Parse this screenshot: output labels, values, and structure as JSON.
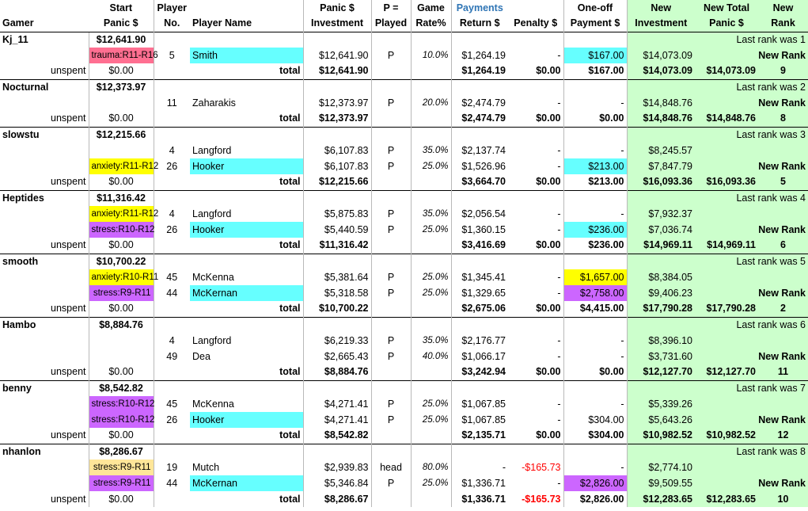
{
  "colors": {
    "green_panel": "#ccffcc",
    "cyan": "#66ffff",
    "yellow": "#ffff00",
    "purple": "#cc66ff",
    "pink": "#ff6f91",
    "tan": "#ffe699",
    "payments_blue": "#2f75b5",
    "negative_red": "#ff0000"
  },
  "headers": {
    "row1": {
      "start": "Start",
      "player": "Player",
      "panic": "Panic $",
      "p_eq": "P =",
      "game": "Game",
      "payments": "Payments",
      "oneoff": "One-off",
      "new_inv": "New",
      "new_total": "New Total",
      "new_rank": "New"
    },
    "row2": {
      "gamer": "Gamer",
      "start": "Panic $",
      "player": "No.",
      "player_name": "Player Name",
      "panic": "Investment",
      "p_eq": "Played",
      "game": "Rate%",
      "payments": "Return $",
      "penalty": "Penalty $",
      "oneoff": "Payment $",
      "new_inv": "Investment",
      "new_total": "Panic $",
      "new_rank": "Rank"
    }
  },
  "labels": {
    "unspent": "unspent",
    "total": "total",
    "last_rank_prefix": "Last rank was",
    "new_rank": "New Rank"
  },
  "gamers": [
    {
      "name": "Kj_11",
      "start": "$12,641.90",
      "last_rank": "Last rank was 1",
      "rows": [
        {
          "tag": "trauma:R11-R16",
          "tag_color": "pink",
          "no": "5",
          "player": "Smith",
          "player_color": "cyan",
          "inv": "$12,641.90",
          "p": "P",
          "rate": "10.0%",
          "ret": "$1,264.19",
          "pen": "-",
          "pay": "$167.00",
          "pay_color": "cyan",
          "new_inv": "$14,073.09",
          "new_rank_label": "New Rank"
        }
      ],
      "unspent": "$0.00",
      "total_inv": "$12,641.90",
      "total_ret": "$1,264.19",
      "total_pen": "$0.00",
      "total_pay": "$167.00",
      "total_new_inv": "$14,073.09",
      "new_total": "$14,073.09",
      "rank": "9"
    },
    {
      "name": "Nocturnal",
      "start": "$12,373.97",
      "last_rank": "Last rank was 2",
      "rows": [
        {
          "tag": "",
          "tag_color": "",
          "no": "11",
          "player": "Zaharakis",
          "player_color": "",
          "inv": "$12,373.97",
          "p": "P",
          "rate": "20.0%",
          "ret": "$2,474.79",
          "pen": "-",
          "pay": "-",
          "pay_color": "",
          "new_inv": "$14,848.76",
          "new_rank_label": "New Rank"
        }
      ],
      "unspent": "$0.00",
      "total_inv": "$12,373.97",
      "total_ret": "$2,474.79",
      "total_pen": "$0.00",
      "total_pay": "$0.00",
      "total_new_inv": "$14,848.76",
      "new_total": "$14,848.76",
      "rank": "8"
    },
    {
      "name": "slowstu",
      "start": "$12,215.66",
      "last_rank": "Last rank was 3",
      "rows": [
        {
          "tag": "",
          "tag_color": "",
          "no": "4",
          "player": "Langford",
          "player_color": "",
          "inv": "$6,107.83",
          "p": "P",
          "rate": "35.0%",
          "ret": "$2,137.74",
          "pen": "-",
          "pay": "-",
          "pay_color": "",
          "new_inv": "$8,245.57",
          "new_rank_label": ""
        },
        {
          "tag": "anxiety:R11-R12",
          "tag_color": "yellow",
          "no": "26",
          "player": "Hooker",
          "player_color": "cyan",
          "inv": "$6,107.83",
          "p": "P",
          "rate": "25.0%",
          "ret": "$1,526.96",
          "pen": "-",
          "pay": "$213.00",
          "pay_color": "cyan",
          "new_inv": "$7,847.79",
          "new_rank_label": "New Rank"
        }
      ],
      "unspent": "$0.00",
      "total_inv": "$12,215.66",
      "total_ret": "$3,664.70",
      "total_pen": "$0.00",
      "total_pay": "$213.00",
      "total_new_inv": "$16,093.36",
      "new_total": "$16,093.36",
      "rank": "5"
    },
    {
      "name": "Heptides",
      "start": "$11,316.42",
      "last_rank": "Last rank was 4",
      "rows": [
        {
          "tag": "anxiety:R11-R12",
          "tag_color": "yellow",
          "no": "4",
          "player": "Langford",
          "player_color": "",
          "inv": "$5,875.83",
          "p": "P",
          "rate": "35.0%",
          "ret": "$2,056.54",
          "pen": "-",
          "pay": "-",
          "pay_color": "",
          "new_inv": "$7,932.37",
          "new_rank_label": ""
        },
        {
          "tag": "stress:R10-R12",
          "tag_color": "purple",
          "no": "26",
          "player": "Hooker",
          "player_color": "cyan",
          "inv": "$5,440.59",
          "p": "P",
          "rate": "25.0%",
          "ret": "$1,360.15",
          "pen": "-",
          "pay": "$236.00",
          "pay_color": "cyan",
          "new_inv": "$7,036.74",
          "new_rank_label": "New Rank"
        }
      ],
      "unspent": "$0.00",
      "total_inv": "$11,316.42",
      "total_ret": "$3,416.69",
      "total_pen": "$0.00",
      "total_pay": "$236.00",
      "total_new_inv": "$14,969.11",
      "new_total": "$14,969.11",
      "rank": "6"
    },
    {
      "name": "smooth",
      "start": "$10,700.22",
      "last_rank": "Last rank was 5",
      "rows": [
        {
          "tag": "anxiety:R10-R11",
          "tag_color": "yellow",
          "no": "45",
          "player": "McKenna",
          "player_color": "",
          "inv": "$5,381.64",
          "p": "P",
          "rate": "25.0%",
          "ret": "$1,345.41",
          "pen": "-",
          "pay": "$1,657.00",
          "pay_color": "yellow",
          "new_inv": "$8,384.05",
          "new_rank_label": ""
        },
        {
          "tag": "stress:R9-R11",
          "tag_color": "purple",
          "no": "44",
          "player": "McKernan",
          "player_color": "cyan",
          "inv": "$5,318.58",
          "p": "P",
          "rate": "25.0%",
          "ret": "$1,329.65",
          "pen": "-",
          "pay": "$2,758.00",
          "pay_color": "purple",
          "new_inv": "$9,406.23",
          "new_rank_label": "New Rank"
        }
      ],
      "unspent": "$0.00",
      "total_inv": "$10,700.22",
      "total_ret": "$2,675.06",
      "total_pen": "$0.00",
      "total_pay": "$4,415.00",
      "total_new_inv": "$17,790.28",
      "new_total": "$17,790.28",
      "rank": "2"
    },
    {
      "name": "Hambo",
      "start": "$8,884.76",
      "last_rank": "Last rank was 6",
      "rows": [
        {
          "tag": "",
          "tag_color": "",
          "no": "4",
          "player": "Langford",
          "player_color": "",
          "inv": "$6,219.33",
          "p": "P",
          "rate": "35.0%",
          "ret": "$2,176.77",
          "pen": "-",
          "pay": "-",
          "pay_color": "",
          "new_inv": "$8,396.10",
          "new_rank_label": ""
        },
        {
          "tag": "",
          "tag_color": "",
          "no": "49",
          "player": "Dea",
          "player_color": "",
          "inv": "$2,665.43",
          "p": "P",
          "rate": "40.0%",
          "ret": "$1,066.17",
          "pen": "-",
          "pay": "-",
          "pay_color": "",
          "new_inv": "$3,731.60",
          "new_rank_label": "New Rank"
        }
      ],
      "unspent": "$0.00",
      "total_inv": "$8,884.76",
      "total_ret": "$3,242.94",
      "total_pen": "$0.00",
      "total_pay": "$0.00",
      "total_new_inv": "$12,127.70",
      "new_total": "$12,127.70",
      "rank": "11"
    },
    {
      "name": "benny",
      "start": "$8,542.82",
      "last_rank": "Last rank was 7",
      "rows": [
        {
          "tag": "stress:R10-R12",
          "tag_color": "purple",
          "no": "45",
          "player": "McKenna",
          "player_color": "",
          "inv": "$4,271.41",
          "p": "P",
          "rate": "25.0%",
          "ret": "$1,067.85",
          "pen": "-",
          "pay": "-",
          "pay_color": "",
          "new_inv": "$5,339.26",
          "new_rank_label": ""
        },
        {
          "tag": "stress:R10-R12",
          "tag_color": "purple",
          "no": "26",
          "player": "Hooker",
          "player_color": "cyan",
          "inv": "$4,271.41",
          "p": "P",
          "rate": "25.0%",
          "ret": "$1,067.85",
          "pen": "-",
          "pay": "$304.00",
          "pay_color": "",
          "new_inv": "$5,643.26",
          "new_rank_label": "New Rank"
        }
      ],
      "unspent": "$0.00",
      "total_inv": "$8,542.82",
      "total_ret": "$2,135.71",
      "total_pen": "$0.00",
      "total_pay": "$304.00",
      "total_new_inv": "$10,982.52",
      "new_total": "$10,982.52",
      "rank": "12"
    },
    {
      "name": "nhanlon",
      "start": "$8,286.67",
      "last_rank": "Last rank was 8",
      "rows": [
        {
          "tag": "stress:R9-R11",
          "tag_color": "tan",
          "no": "19",
          "player": "Mutch",
          "player_color": "",
          "inv": "$2,939.83",
          "p": "head",
          "rate": "80.0%",
          "ret": "-",
          "pen": "-$165.73",
          "pay": "-",
          "pay_color": "",
          "new_inv": "$2,774.10",
          "new_rank_label": ""
        },
        {
          "tag": "stress:R9-R11",
          "tag_color": "purple",
          "no": "44",
          "player": "McKernan",
          "player_color": "cyan",
          "inv": "$5,346.84",
          "p": "P",
          "rate": "25.0%",
          "ret": "$1,336.71",
          "pen": "-",
          "pay": "$2,826.00",
          "pay_color": "purple",
          "new_inv": "$9,509.55",
          "new_rank_label": "New Rank"
        }
      ],
      "unspent": "$0.00",
      "total_inv": "$8,286.67",
      "total_ret": "$1,336.71",
      "total_pen": "-$165.73",
      "total_pay": "$2,826.00",
      "total_new_inv": "$12,283.65",
      "new_total": "$12,283.65",
      "rank": "10"
    }
  ]
}
